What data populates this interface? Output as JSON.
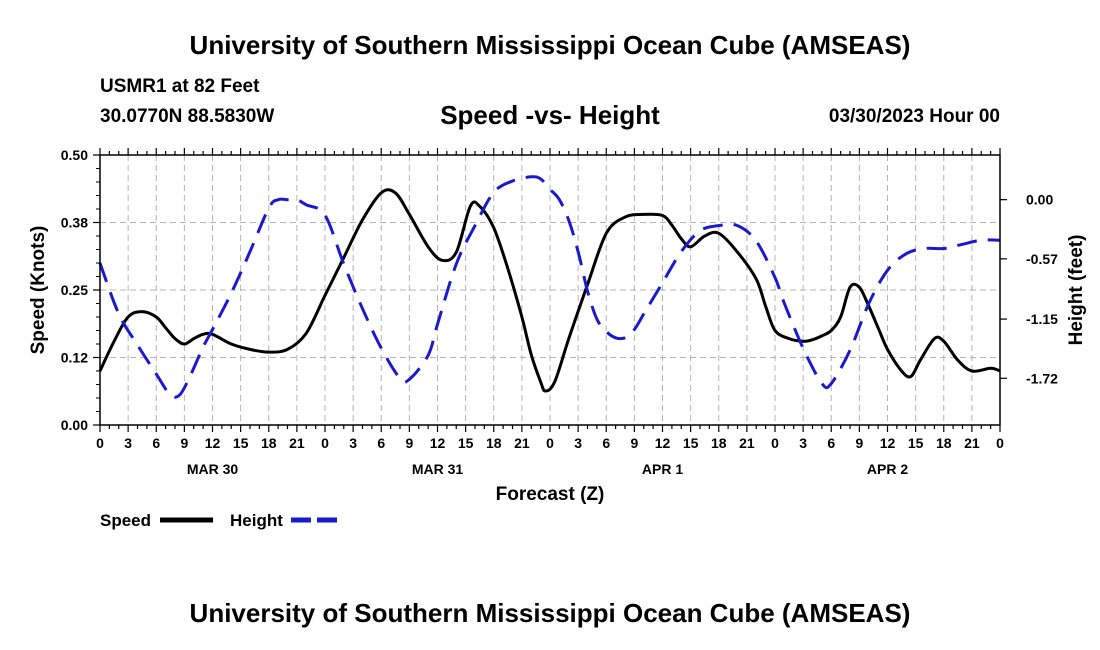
{
  "page": {
    "title_top": "University of Southern Mississippi Ocean Cube (AMSEAS)",
    "title_bottom": "University of Southern Mississippi Ocean Cube (AMSEAS)",
    "station": "USMR1 at 82 Feet",
    "coords": "30.0770N  88.5830W",
    "subtitle": "Speed -vs- Height",
    "datetime": "03/30/2023 Hour 00"
  },
  "colors": {
    "speed": "#000000",
    "height": "#1a1acc",
    "grid": "#b4b4b4"
  },
  "chart_data": {
    "type": "line",
    "title": "Speed -vs- Height",
    "xlabel": "Forecast (Z)",
    "ylabel_left": "Speed (Knots)",
    "ylabel_right": "Height (feet)",
    "x_range": [
      0,
      96
    ],
    "x_ticks": [
      0,
      3,
      6,
      9,
      12,
      15,
      18,
      21,
      24,
      27,
      30,
      33,
      36,
      39,
      42,
      45,
      48,
      51,
      54,
      57,
      60,
      63,
      66,
      69,
      72,
      75,
      78,
      81,
      84,
      87,
      90,
      93,
      96
    ],
    "x_tick_labels": [
      "0",
      "3",
      "6",
      "9",
      "12",
      "15",
      "18",
      "21",
      "0",
      "3",
      "6",
      "9",
      "12",
      "15",
      "18",
      "21",
      "0",
      "3",
      "6",
      "9",
      "12",
      "15",
      "18",
      "21",
      "0",
      "3",
      "6",
      "9",
      "12",
      "15",
      "18",
      "21",
      "0"
    ],
    "date_labels": [
      {
        "x": 12,
        "label": "MAR 30"
      },
      {
        "x": 36,
        "label": "MAR 31"
      },
      {
        "x": 60,
        "label": "APR 1"
      },
      {
        "x": 84,
        "label": "APR 2"
      }
    ],
    "ylim_left": [
      0,
      0.5
    ],
    "yticks_left": [
      0,
      0.125,
      0.25,
      0.375,
      0.5
    ],
    "ytick_labels_left": [
      "0.00",
      "0.12",
      "0.25",
      "0.38",
      "0.50"
    ],
    "ylim_right": [
      -2.17,
      0.43
    ],
    "yticks_right": [
      0,
      -0.57,
      -1.15,
      -1.72
    ],
    "ytick_labels_right": [
      "0.00",
      "-0.57",
      "-1.15",
      "-1.72"
    ],
    "series": [
      {
        "name": "Speed",
        "axis": "left",
        "style": "solid",
        "x": [
          0,
          1.5,
          3,
          4.5,
          6,
          7,
          8,
          9,
          10,
          11,
          12,
          14,
          16,
          18,
          20,
          22,
          24,
          26,
          28,
          30,
          31.5,
          33,
          35,
          36.5,
          38,
          39.5,
          40.5,
          42,
          43.5,
          45,
          46,
          47,
          47.5,
          48.5,
          50,
          52,
          54,
          56,
          58,
          60,
          61,
          62,
          63,
          64.5,
          66,
          68,
          70,
          71,
          72,
          73.5,
          75,
          76,
          77,
          78,
          79,
          80,
          81,
          82,
          83,
          84,
          85.5,
          86.5,
          87.5,
          89,
          90,
          91.5,
          93,
          95,
          96
        ],
        "values": [
          0.1,
          0.155,
          0.2,
          0.21,
          0.2,
          0.18,
          0.16,
          0.15,
          0.16,
          0.168,
          0.168,
          0.15,
          0.14,
          0.135,
          0.14,
          0.17,
          0.24,
          0.31,
          0.38,
          0.43,
          0.43,
          0.39,
          0.33,
          0.305,
          0.32,
          0.405,
          0.405,
          0.365,
          0.29,
          0.2,
          0.13,
          0.08,
          0.063,
          0.08,
          0.16,
          0.26,
          0.355,
          0.385,
          0.39,
          0.388,
          0.37,
          0.345,
          0.33,
          0.35,
          0.355,
          0.32,
          0.27,
          0.22,
          0.175,
          0.16,
          0.155,
          0.158,
          0.165,
          0.175,
          0.2,
          0.255,
          0.255,
          0.22,
          0.18,
          0.14,
          0.1,
          0.09,
          0.12,
          0.16,
          0.155,
          0.12,
          0.1,
          0.105,
          0.1
        ]
      },
      {
        "name": "Height",
        "axis": "right",
        "style": "dashed",
        "x": [
          0,
          2,
          4,
          6,
          7.5,
          8.5,
          9.5,
          11,
          12,
          14,
          16,
          18,
          19,
          20,
          21,
          22,
          24,
          26,
          28,
          30,
          32,
          33,
          35,
          36,
          38,
          40,
          42,
          44,
          46,
          47,
          48,
          49,
          50,
          51,
          52,
          53,
          54,
          55,
          56,
          57,
          58,
          60,
          62,
          64,
          66,
          68,
          70,
          72,
          73,
          75,
          77,
          78,
          80,
          82,
          84,
          86,
          88,
          90,
          92,
          94,
          96
        ],
        "values": [
          -0.61,
          -1.1,
          -1.4,
          -1.68,
          -1.88,
          -1.88,
          -1.72,
          -1.42,
          -1.25,
          -0.9,
          -0.5,
          -0.08,
          0.0,
          0.0,
          0.0,
          -0.05,
          -0.15,
          -0.62,
          -1.05,
          -1.43,
          -1.72,
          -1.73,
          -1.5,
          -1.2,
          -0.62,
          -0.25,
          0.07,
          0.18,
          0.22,
          0.2,
          0.1,
          0.0,
          -0.2,
          -0.5,
          -0.88,
          -1.15,
          -1.27,
          -1.33,
          -1.33,
          -1.25,
          -1.1,
          -0.8,
          -0.5,
          -0.3,
          -0.25,
          -0.25,
          -0.4,
          -0.75,
          -1.0,
          -1.43,
          -1.77,
          -1.77,
          -1.45,
          -1.0,
          -0.68,
          -0.52,
          -0.47,
          -0.47,
          -0.43,
          -0.39,
          -0.39
        ]
      }
    ],
    "legend": [
      {
        "label": "Speed",
        "series": "Speed"
      },
      {
        "label": "Height",
        "series": "Height"
      }
    ]
  }
}
